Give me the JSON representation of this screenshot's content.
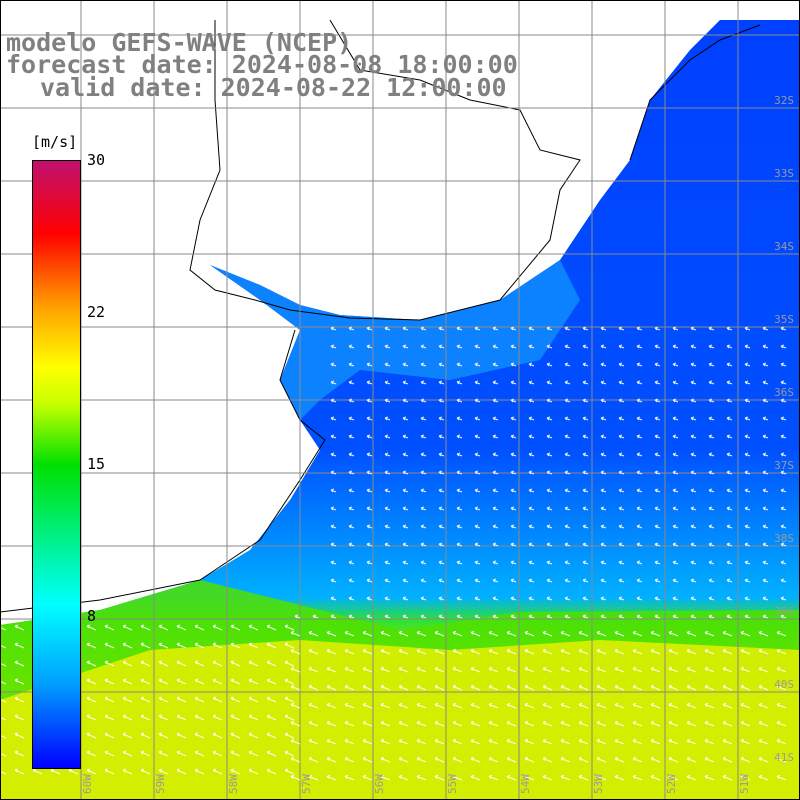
{
  "title": {
    "line1": "modelo GEFS-WAVE (NCEP)",
    "line2": "forecast date: 2024-08-08 18:00:00",
    "line3": "valid date: 2024-08-22 12:00:00"
  },
  "colorbar": {
    "unit": "[m/s]",
    "ticks": [
      "30",
      "22",
      "15",
      "8"
    ],
    "colors": [
      "#0000ff",
      "#00a0ff",
      "#00ffff",
      "#00e000",
      "#ffff00",
      "#ffa000",
      "#ff0000",
      "#c01070"
    ]
  },
  "lat_labels": [
    "32S",
    "33S",
    "34S",
    "35S",
    "36S",
    "37S",
    "38S",
    "39S",
    "40S",
    "41S"
  ],
  "lon_labels": [
    "60W",
    "59W",
    "58W",
    "57W",
    "56W",
    "55W",
    "54W",
    "53W",
    "52W",
    "51W"
  ]
}
